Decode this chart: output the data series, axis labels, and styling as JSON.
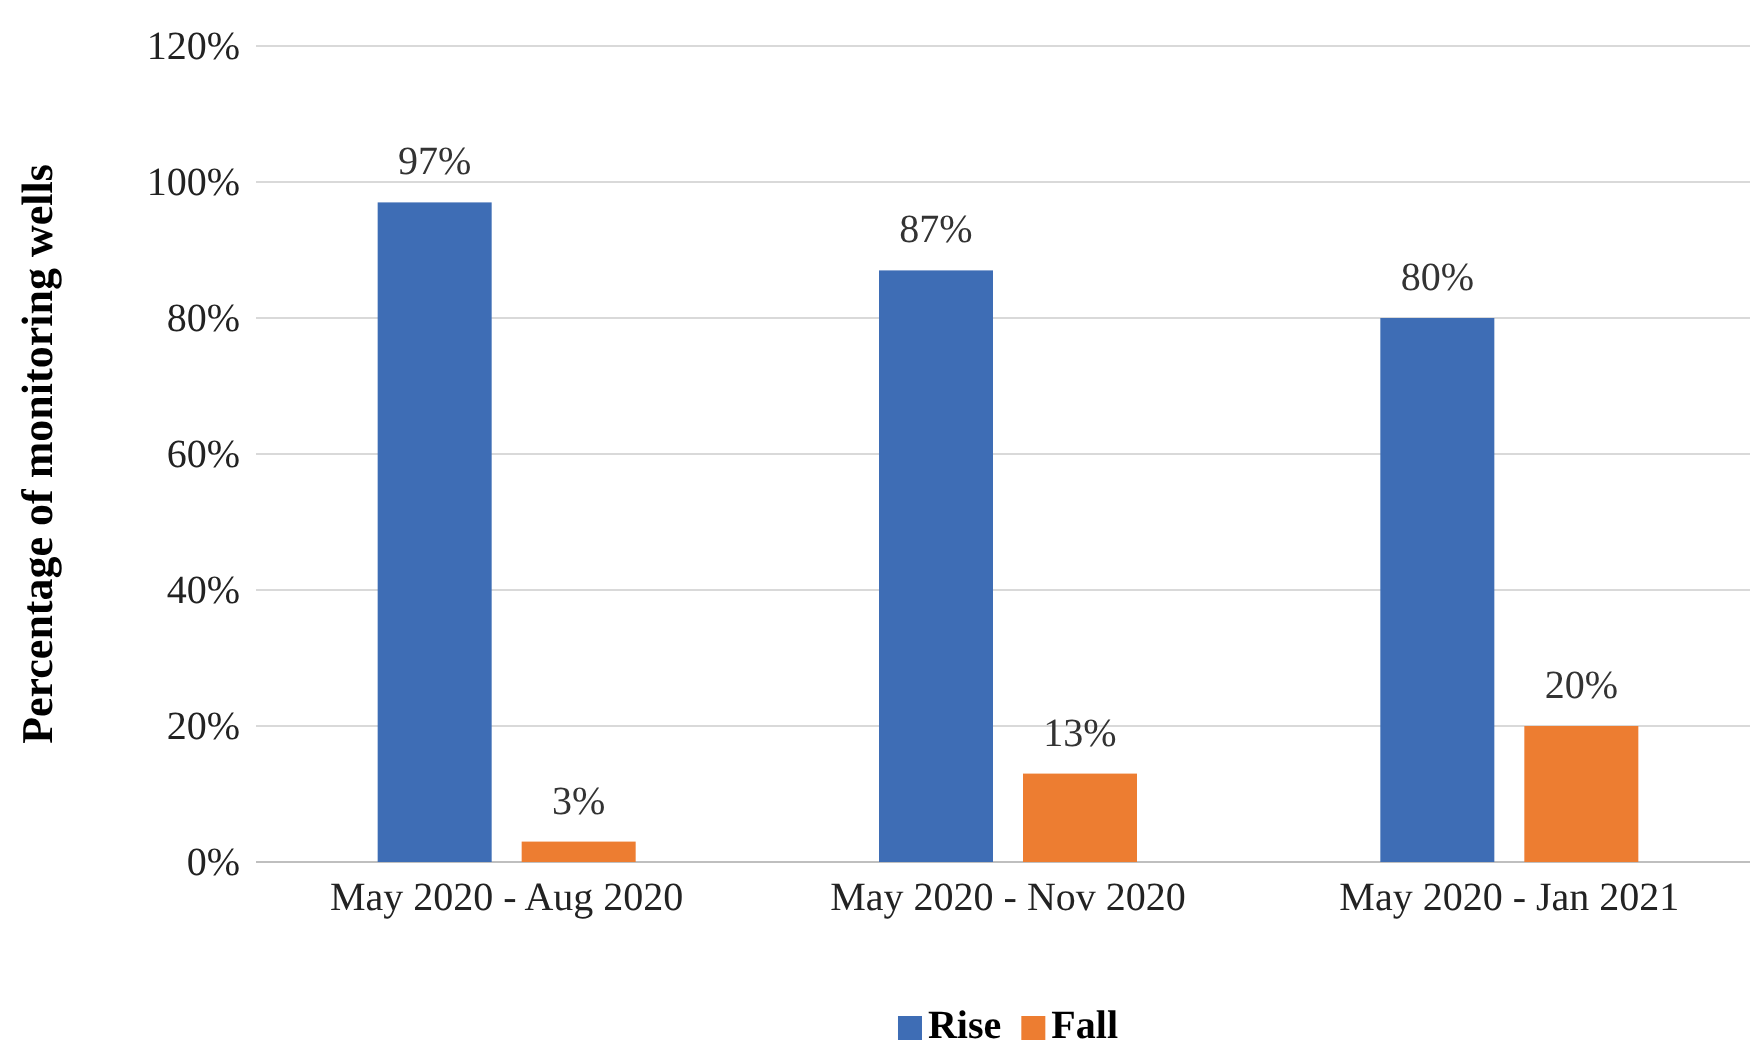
{
  "chart_data": {
    "type": "bar",
    "ylabel": "Percentage of monitoring wells",
    "categories": [
      "May 2020 - Aug 2020",
      "May 2020 - Nov 2020",
      "May 2020 - Jan 2021"
    ],
    "series": [
      {
        "name": "Rise",
        "color": "#3e6db5",
        "values": [
          97,
          87,
          80
        ],
        "value_labels": [
          "97%",
          "87%",
          "80%"
        ]
      },
      {
        "name": "Fall",
        "color": "#ed7d31",
        "values": [
          3,
          13,
          20
        ],
        "value_labels": [
          "3%",
          "13%",
          "20%"
        ]
      }
    ],
    "ylim": [
      0,
      120
    ],
    "yticks": [
      {
        "value": 0,
        "label": "0%"
      },
      {
        "value": 20,
        "label": "20%"
      },
      {
        "value": 40,
        "label": "40%"
      },
      {
        "value": 60,
        "label": "60%"
      },
      {
        "value": 80,
        "label": "80%"
      },
      {
        "value": 100,
        "label": "100%"
      },
      {
        "value": 120,
        "label": "120%"
      }
    ],
    "grid": "y",
    "legend": "bottom"
  }
}
